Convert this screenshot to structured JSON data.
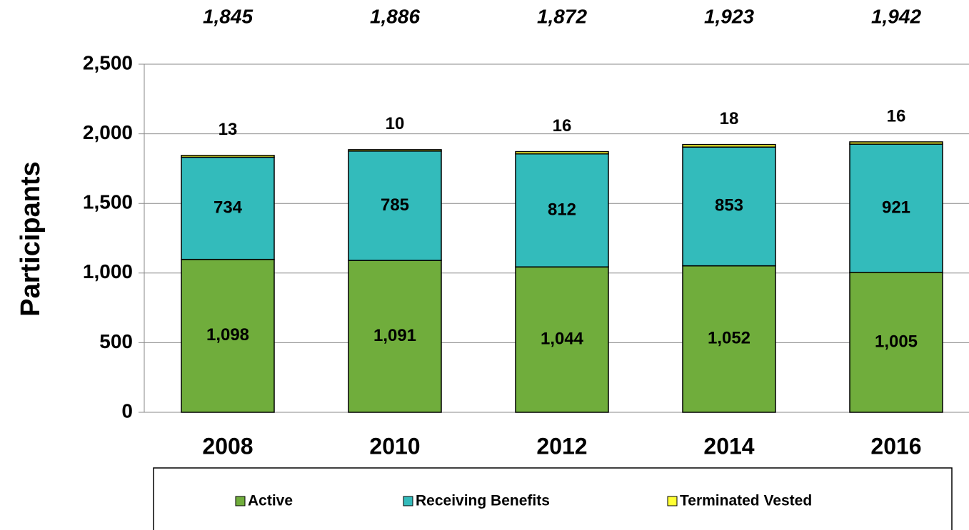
{
  "chart_data": {
    "type": "stacked_bar",
    "y_axis_label": "Participants",
    "categories": [
      "2008",
      "2010",
      "2012",
      "2014",
      "2016"
    ],
    "annotations": [
      "1,845",
      "1,886",
      "1,872",
      "1,923",
      "1,942"
    ],
    "series": [
      {
        "name": "Active",
        "color": "#70ad3c",
        "values": [
          1098,
          1091,
          1044,
          1052,
          1005
        ],
        "value_labels": [
          "1,098",
          "1,091",
          "1,044",
          "1,052",
          "1,005"
        ]
      },
      {
        "name": "Receiving Benefits",
        "color": "#33bbbb",
        "values": [
          734,
          785,
          812,
          853,
          921
        ]
      },
      {
        "name": "Terminated Vested",
        "color": "#ffff33",
        "values": [
          13,
          10,
          16,
          18,
          16
        ]
      }
    ],
    "ylim": [
      0,
      2500
    ],
    "yticks": [
      0,
      500,
      {
        "value": 1000,
        "label": "1,000"
      },
      {
        "value": 1500,
        "label": "1,500"
      },
      {
        "value": 2000,
        "label": "2,000"
      },
      {
        "value": 2500,
        "label": "2,500"
      }
    ],
    "grid": true
  }
}
